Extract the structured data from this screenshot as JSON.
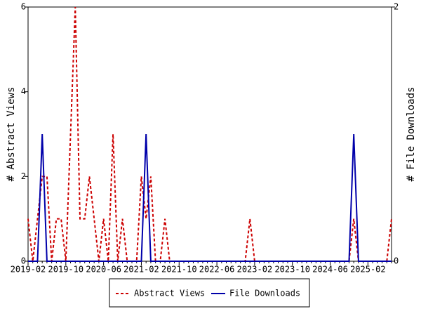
{
  "chart_data": {
    "type": "line",
    "categories": [
      "2019-02",
      null,
      null,
      null,
      null,
      null,
      null,
      null,
      "2019-10",
      null,
      null,
      null,
      null,
      null,
      null,
      null,
      "2020-06",
      null,
      null,
      null,
      null,
      null,
      null,
      null,
      "2021-02",
      null,
      null,
      null,
      null,
      null,
      null,
      null,
      "2021-10",
      null,
      null,
      null,
      null,
      null,
      null,
      null,
      "2022-06",
      null,
      null,
      null,
      null,
      null,
      null,
      null,
      "2023-02",
      null,
      null,
      null,
      null,
      null,
      null,
      null,
      "2023-10",
      null,
      null,
      null,
      null,
      null,
      null,
      null,
      "2024-06",
      null,
      null,
      null,
      null,
      null,
      null,
      null,
      "2025-02",
      null,
      null,
      null,
      null,
      null
    ],
    "series": [
      {
        "name": "Abstract Views",
        "color": "#cc0000",
        "line_style": "dashed",
        "values": [
          1,
          0,
          1,
          2,
          2,
          0,
          1,
          1,
          0,
          3,
          6,
          1,
          1,
          2,
          1,
          0,
          1,
          0,
          3,
          0,
          1,
          0,
          0,
          0,
          2,
          1,
          2,
          0,
          0,
          1,
          0,
          0,
          0,
          0,
          0,
          0,
          0,
          0,
          0,
          0,
          0,
          0,
          0,
          0,
          0,
          0,
          0,
          1,
          0,
          0,
          0,
          0,
          0,
          0,
          0,
          0,
          0,
          0,
          0,
          0,
          0,
          0,
          0,
          0,
          0,
          0,
          0,
          0,
          0,
          1,
          0,
          0,
          0,
          0,
          0,
          0,
          0,
          1
        ]
      },
      {
        "name": "File Downloads",
        "color": "#0000aa",
        "line_style": "solid",
        "axis": "y2",
        "values": [
          0,
          0,
          0,
          1,
          0,
          0,
          0,
          0,
          0,
          0,
          0,
          0,
          0,
          0,
          0,
          0,
          0,
          0,
          0,
          0,
          0,
          0,
          0,
          0,
          0,
          1,
          0,
          0,
          0,
          0,
          0,
          0,
          0,
          0,
          0,
          0,
          0,
          0,
          0,
          0,
          0,
          0,
          0,
          0,
          0,
          0,
          0,
          0,
          0,
          0,
          0,
          0,
          0,
          0,
          0,
          0,
          0,
          0,
          0,
          0,
          0,
          0,
          0,
          0,
          0,
          0,
          0,
          0,
          0,
          1,
          0,
          0,
          0,
          0,
          0,
          0,
          0,
          0
        ]
      }
    ],
    "y_label": "# Abstract Views",
    "y2_label": "# File Downloads",
    "ylim": [
      0,
      6
    ],
    "yticks": [
      0,
      2,
      4,
      6
    ],
    "y2lim": [
      0,
      2
    ],
    "y2ticks": [
      0,
      2
    ],
    "legend": "bottom"
  }
}
